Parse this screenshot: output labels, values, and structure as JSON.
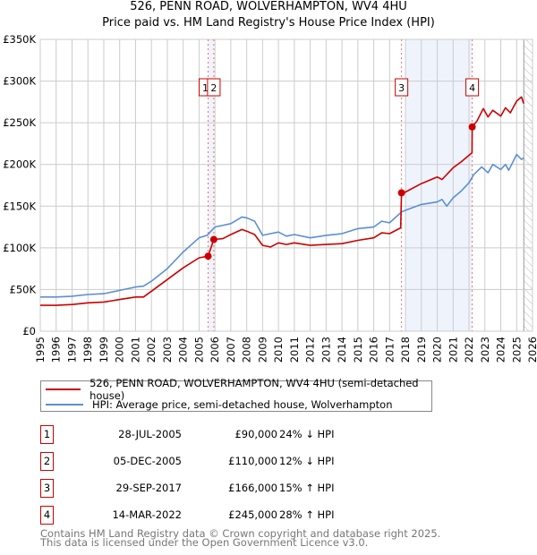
{
  "header": {
    "title": "526, PENN ROAD, WOLVERHAMPTON, WV4 4HU",
    "subtitle": "Price paid vs. HM Land Registry's House Price Index (HPI)"
  },
  "chart_data": {
    "type": "line",
    "title": "526, PENN ROAD, WOLVERHAMPTON, WV4 4HU",
    "subtitle": "Price paid vs. HM Land Registry's House Price Index (HPI)",
    "xlim": [
      1995,
      2026
    ],
    "ylim": [
      0,
      350000
    ],
    "x_ticks": [
      "1995",
      "1996",
      "1997",
      "1998",
      "1999",
      "2000",
      "2001",
      "2002",
      "2003",
      "2004",
      "2005",
      "2006",
      "2007",
      "2008",
      "2009",
      "2010",
      "2011",
      "2012",
      "2013",
      "2014",
      "2015",
      "2016",
      "2017",
      "2018",
      "2019",
      "2020",
      "2021",
      "2022",
      "2023",
      "2024",
      "2025",
      "2026"
    ],
    "y_ticks": [
      {
        "v": 0,
        "label": "£0"
      },
      {
        "v": 50000,
        "label": "£50K"
      },
      {
        "v": 100000,
        "label": "£100K"
      },
      {
        "v": 150000,
        "label": "£150K"
      },
      {
        "v": 200000,
        "label": "£200K"
      },
      {
        "v": 250000,
        "label": "£250K"
      },
      {
        "v": 300000,
        "label": "£300K"
      },
      {
        "v": 350000,
        "label": "£350K"
      }
    ],
    "grid": true,
    "colors": {
      "property": "#cc0000",
      "hpi": "#5b8fd4",
      "shade": "#eef3fc"
    },
    "shaded_ranges": [
      [
        2005.57,
        2005.93
      ],
      [
        2018.0,
        2022.2
      ]
    ],
    "forecast_from": 2025.45,
    "series": [
      {
        "name": "526, PENN ROAD, WOLVERHAMPTON, WV4 4HU (semi-detached house)",
        "x": [
          1995,
          1996,
          1997,
          1998,
          1999,
          2000,
          2001,
          2001.5,
          2002,
          2003,
          2004,
          2005,
          2005.57,
          2005.93,
          2006.5,
          2007,
          2007.7,
          2008,
          2008.5,
          2009,
          2009.5,
          2010,
          2010.5,
          2011,
          2012,
          2013,
          2014,
          2015,
          2016,
          2016.5,
          2017,
          2017.7,
          2017.75,
          2018,
          2019,
          2020,
          2020.3,
          2021,
          2021.5,
          2022,
          2022.19,
          2022.2,
          2022.5,
          2022.9,
          2023.2,
          2023.5,
          2024,
          2024.3,
          2024.6,
          2025,
          2025.3,
          2025.45
        ],
        "values": [
          31000,
          31000,
          32000,
          34000,
          35000,
          38000,
          41000,
          41000,
          48000,
          62000,
          76000,
          88000,
          90000,
          110000,
          111000,
          116000,
          122000,
          120000,
          116000,
          103000,
          101000,
          106000,
          104000,
          106000,
          103000,
          104000,
          105000,
          109000,
          112000,
          118000,
          117000,
          124000,
          166000,
          167000,
          177000,
          185000,
          182000,
          196000,
          203000,
          211000,
          214000,
          245000,
          252000,
          267000,
          257000,
          265000,
          258000,
          268000,
          262000,
          276000,
          281000,
          273000
        ]
      },
      {
        "name": "HPI: Average price, semi-detached house, Wolverhampton",
        "x": [
          1995,
          1996,
          1997,
          1998,
          1999,
          2000,
          2001,
          2001.5,
          2002,
          2003,
          2004,
          2005,
          2005.5,
          2006,
          2007,
          2007.7,
          2008,
          2008.5,
          2009,
          2009.5,
          2010,
          2010.5,
          2011,
          2012,
          2013,
          2014,
          2015,
          2016,
          2016.5,
          2017,
          2017.75,
          2018,
          2019,
          2020,
          2020.3,
          2020.6,
          2021,
          2021.5,
          2022,
          2022.3,
          2022.8,
          2023.2,
          2023.5,
          2024,
          2024.3,
          2024.5,
          2025,
          2025.3,
          2025.45
        ],
        "values": [
          41000,
          41000,
          42000,
          44000,
          45000,
          49000,
          53000,
          54000,
          60000,
          75000,
          95000,
          112000,
          115000,
          125000,
          129000,
          137000,
          136000,
          132000,
          115000,
          117000,
          119000,
          114000,
          116000,
          112000,
          115000,
          117000,
          123000,
          125000,
          132000,
          130000,
          143000,
          145000,
          152000,
          155000,
          158000,
          150000,
          160000,
          168000,
          178000,
          188000,
          197000,
          190000,
          200000,
          194000,
          200000,
          193000,
          212000,
          206000,
          208000
        ]
      }
    ],
    "sales": [
      {
        "id": "1",
        "x": 2005.57,
        "value": 90000
      },
      {
        "id": "2",
        "x": 2005.93,
        "value": 110000
      },
      {
        "id": "3",
        "x": 2017.75,
        "value": 166000
      },
      {
        "id": "4",
        "x": 2022.2,
        "value": 245000
      }
    ]
  },
  "legend": {
    "property": "526, PENN ROAD, WOLVERHAMPTON, WV4 4HU (semi-detached house)",
    "hpi": "HPI: Average price, semi-detached house, Wolverhampton"
  },
  "transactions": [
    {
      "num": "1",
      "date": "28-JUL-2005",
      "price": "£90,000",
      "hpi": "24% ↓ HPI"
    },
    {
      "num": "2",
      "date": "05-DEC-2005",
      "price": "£110,000",
      "hpi": "12% ↓ HPI"
    },
    {
      "num": "3",
      "date": "29-SEP-2017",
      "price": "£166,000",
      "hpi": "15% ↑ HPI"
    },
    {
      "num": "4",
      "date": "14-MAR-2022",
      "price": "£245,000",
      "hpi": "28% ↑ HPI"
    }
  ],
  "footer": {
    "line1": "Contains HM Land Registry data © Crown copyright and database right 2025.",
    "line2": "This data is licensed under the Open Government Licence v3.0."
  }
}
